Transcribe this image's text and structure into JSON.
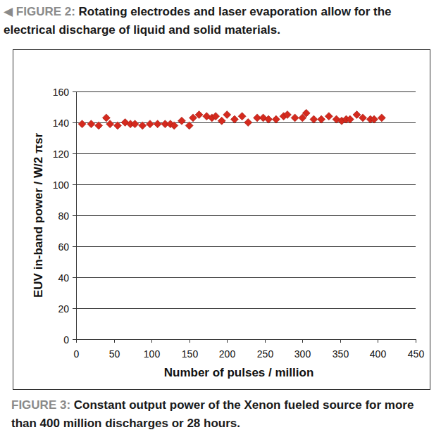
{
  "chart_data": {
    "type": "scatter",
    "title": "FIGURE 3: Constant output power of the Xenon fueled source for more than 400 million discharges or 28 hours.",
    "annotations": [
      "◀ FIGURE 2: Rotating electrodes and laser evaporation allow for the electrical discharge of liquid and solid materials."
    ],
    "x_label": "Number of pulses / million",
    "y_label": "EUV in-band power / W/2 πsr",
    "x": [
      8,
      20,
      30,
      40,
      45,
      55,
      65,
      72,
      78,
      88,
      98,
      108,
      118,
      125,
      130,
      140,
      150,
      155,
      163,
      173,
      180,
      185,
      193,
      200,
      210,
      220,
      228,
      240,
      248,
      255,
      265,
      275,
      280,
      290,
      300,
      305,
      315,
      325,
      335,
      345,
      352,
      358,
      363,
      372,
      380,
      390,
      395,
      405
    ],
    "values": [
      139,
      139,
      138,
      143,
      139,
      138,
      140,
      139,
      139,
      138,
      139,
      139,
      139,
      139,
      138,
      141,
      138,
      143,
      145,
      144,
      143,
      144,
      141,
      145,
      142,
      144,
      140,
      143,
      143,
      142,
      142,
      144,
      145,
      143,
      143,
      146,
      142,
      142,
      144,
      142,
      141,
      142,
      142,
      145,
      143,
      142,
      142,
      143
    ],
    "color": "#d42a1e",
    "marker": "diamond",
    "xlim": [
      0,
      450
    ],
    "xticks": [
      0,
      50,
      100,
      150,
      200,
      250,
      300,
      350,
      400,
      450
    ],
    "ylim": [
      0,
      160
    ],
    "yticks": [
      0,
      20,
      40,
      60,
      80,
      100,
      120,
      140,
      160
    ],
    "grid": true
  }
}
